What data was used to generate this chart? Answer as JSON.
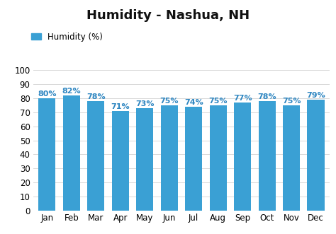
{
  "title": "Humidity - Nashua, NH",
  "legend_label": "Humidity (%)",
  "months": [
    "Jan",
    "Feb",
    "Mar",
    "Apr",
    "May",
    "Jun",
    "Jul",
    "Aug",
    "Sep",
    "Oct",
    "Nov",
    "Dec"
  ],
  "values": [
    80,
    82,
    78,
    71,
    73,
    75,
    74,
    75,
    77,
    78,
    75,
    79
  ],
  "bar_color": "#3aa0d4",
  "label_color": "#2e86c1",
  "background_color": "#ffffff",
  "grid_color": "#d8d8d8",
  "ylim": [
    0,
    100
  ],
  "yticks": [
    0,
    10,
    20,
    30,
    40,
    50,
    60,
    70,
    80,
    90,
    100
  ],
  "title_fontsize": 13,
  "tick_fontsize": 8.5,
  "legend_fontsize": 8.5,
  "bar_label_fontsize": 8
}
